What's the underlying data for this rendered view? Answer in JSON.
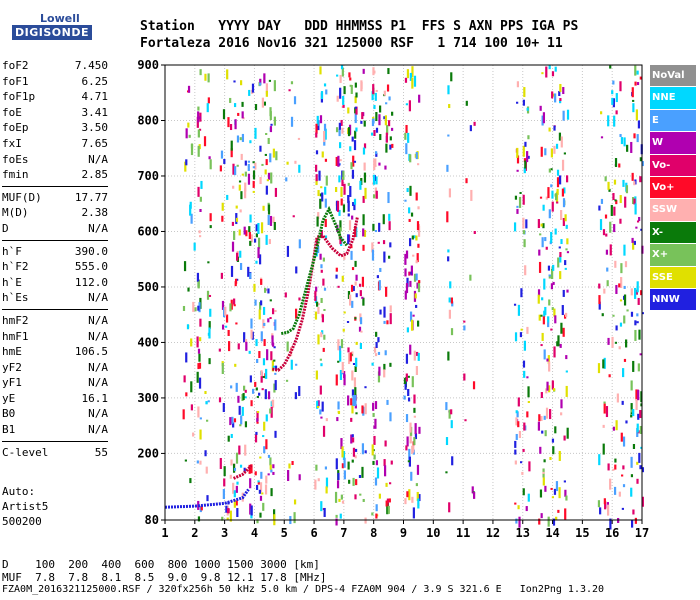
{
  "logo": {
    "top": "Lowell",
    "bottom": "DIGISONDE"
  },
  "header": {
    "line1": "Station   YYYY DAY   DDD HHMMSS P1  FFS S AXN PPS IGA PS",
    "line2": "Fortaleza 2016 Nov16 321 125000 RSF   1 714 100 10+ 11"
  },
  "params": [
    {
      "group": [
        {
          "name": "foF2",
          "value": "7.450"
        },
        {
          "name": "foF1",
          "value": "6.25"
        },
        {
          "name": "foF1p",
          "value": "4.71"
        },
        {
          "name": "foE",
          "value": "3.41"
        },
        {
          "name": "foEp",
          "value": "3.50"
        },
        {
          "name": "fxI",
          "value": "7.65"
        },
        {
          "name": "foEs",
          "value": "N/A"
        },
        {
          "name": "fmin",
          "value": "2.85"
        }
      ]
    },
    {
      "group": [
        {
          "name": "MUF(D)",
          "value": "17.77"
        },
        {
          "name": "M(D)",
          "value": "2.38"
        },
        {
          "name": "D",
          "value": "N/A"
        }
      ]
    },
    {
      "group": [
        {
          "name": "h`F",
          "value": "390.0"
        },
        {
          "name": "h`F2",
          "value": "555.0"
        },
        {
          "name": "h`E",
          "value": "112.0"
        },
        {
          "name": "h`Es",
          "value": "N/A"
        }
      ]
    },
    {
      "group": [
        {
          "name": "hmF2",
          "value": "N/A"
        },
        {
          "name": "hmF1",
          "value": "N/A"
        },
        {
          "name": "hmE",
          "value": "106.5"
        },
        {
          "name": "yF2",
          "value": "N/A"
        },
        {
          "name": "yF1",
          "value": "N/A"
        },
        {
          "name": "yE",
          "value": "16.1"
        },
        {
          "name": "B0",
          "value": "N/A"
        },
        {
          "name": "B1",
          "value": "N/A"
        }
      ]
    },
    {
      "group": [
        {
          "name": "C-level",
          "value": "55"
        }
      ]
    }
  ],
  "auto": [
    "Auto:",
    "Artist5",
    "500200"
  ],
  "d_row": "D    100  200  400  600  800 1000 1500 3000 [km]",
  "muf_row": "MUF  7.8  7.8  8.1  8.5  9.0  9.8 12.1 17.8 [MHz]",
  "footer": "FZA0M_2016321125000.RSF / 320fx256h 50 kHz 5.0 km / DPS-4 FZA0M 904 / 3.9 S 321.6 E   Ion2Png 1.3.20",
  "legend": [
    {
      "label": "NoVal",
      "color": "#909090"
    },
    {
      "label": "NNE",
      "color": "#00d8ff"
    },
    {
      "label": "E",
      "color": "#4aa0ff"
    },
    {
      "label": "W",
      "color": "#b000b0"
    },
    {
      "label": "Vo-",
      "color": "#e0006a"
    },
    {
      "label": "Vo+",
      "color": "#ff0a28"
    },
    {
      "label": "SSW",
      "color": "#ffb0b0"
    },
    {
      "label": "X-",
      "color": "#0a7a0a"
    },
    {
      "label": "X+",
      "color": "#78c25a"
    },
    {
      "label": "SSE",
      "color": "#e0e000"
    },
    {
      "label": "NNW",
      "color": "#2020e0"
    }
  ],
  "chart_data": {
    "type": "scatter",
    "xlabel": "",
    "ylabel": "",
    "xlim": [
      1,
      17
    ],
    "ylim": [
      80,
      900
    ],
    "xticks": [
      1,
      2,
      3,
      4,
      5,
      6,
      7,
      8,
      9,
      10,
      11,
      12,
      13,
      14,
      15,
      16,
      17
    ],
    "yticks": [
      80,
      200,
      300,
      400,
      500,
      600,
      700,
      800,
      900
    ],
    "series": [
      {
        "name": "Vo-",
        "trace": [
          [
            4.6,
            352
          ],
          [
            4.8,
            350
          ],
          [
            5.0,
            360
          ],
          [
            5.2,
            380
          ],
          [
            5.4,
            405
          ],
          [
            5.6,
            440
          ],
          [
            5.8,
            490
          ],
          [
            6.0,
            555
          ],
          [
            6.1,
            590
          ],
          [
            6.3,
            592
          ],
          [
            6.6,
            570
          ],
          [
            6.9,
            556
          ],
          [
            7.1,
            560
          ],
          [
            7.3,
            585
          ],
          [
            7.45,
            625
          ]
        ]
      },
      {
        "name": "X-",
        "trace": [
          [
            4.9,
            416
          ],
          [
            5.1,
            418
          ],
          [
            5.3,
            425
          ],
          [
            5.5,
            450
          ],
          [
            5.8,
            510
          ],
          [
            6.05,
            560
          ],
          [
            6.3,
            620
          ],
          [
            6.5,
            640
          ],
          [
            6.7,
            615
          ],
          [
            6.9,
            588
          ],
          [
            7.1,
            575
          ]
        ]
      },
      {
        "name": "Vo-",
        "trace": [
          [
            3.3,
            155
          ],
          [
            3.6,
            162
          ],
          [
            3.9,
            178
          ]
        ]
      },
      {
        "name": "NNW",
        "trace": [
          [
            1,
            103
          ],
          [
            2,
            105
          ],
          [
            3,
            110
          ],
          [
            3.6,
            120
          ],
          [
            3.8,
            135
          ]
        ]
      }
    ]
  }
}
